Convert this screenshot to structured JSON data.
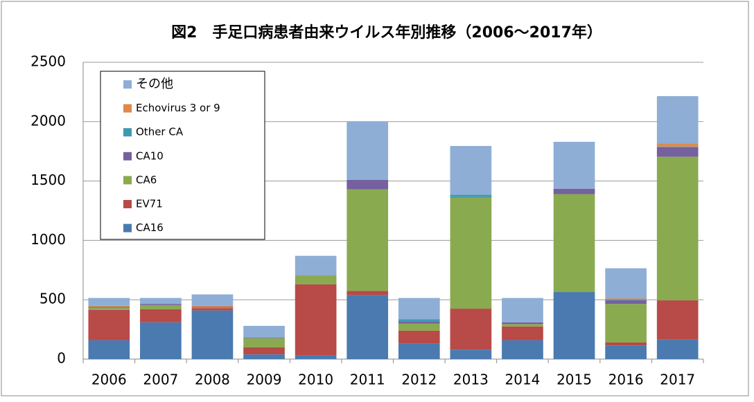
{
  "chart_data": {
    "type": "stacked_bar",
    "title": "図2　手足口病患者由来ウイルス年別推移（2006～2017年）",
    "categories": [
      "2006",
      "2007",
      "2008",
      "2009",
      "2010",
      "2011",
      "2012",
      "2013",
      "2014",
      "2015",
      "2016",
      "2017"
    ],
    "series": [
      {
        "name": "CA16",
        "color": "#4a7ab0",
        "values": [
          160,
          310,
          410,
          40,
          30,
          540,
          130,
          80,
          160,
          565,
          115,
          165
        ]
      },
      {
        "name": "EV71",
        "color": "#b84a48",
        "values": [
          255,
          110,
          20,
          60,
          600,
          35,
          110,
          345,
          115,
          0,
          25,
          330
        ]
      },
      {
        "name": "CA6",
        "color": "#8aaa50",
        "values": [
          15,
          35,
          5,
          75,
          75,
          855,
          60,
          935,
          20,
          825,
          325,
          1210
        ]
      },
      {
        "name": "CA10",
        "color": "#7560a0",
        "values": [
          5,
          10,
          5,
          5,
          0,
          80,
          15,
          5,
          15,
          45,
          30,
          80
        ]
      },
      {
        "name": "Other CA",
        "color": "#3e9ab0",
        "values": [
          5,
          0,
          0,
          0,
          0,
          0,
          20,
          20,
          0,
          0,
          5,
          5
        ]
      },
      {
        "name": "Echovirus 3 or 9",
        "color": "#e0884a",
        "values": [
          10,
          0,
          10,
          0,
          0,
          0,
          0,
          0,
          0,
          0,
          10,
          25
        ]
      },
      {
        "name": "その他",
        "color": "#8eaed6",
        "values": [
          65,
          50,
          95,
          100,
          165,
          490,
          180,
          410,
          205,
          395,
          255,
          400
        ]
      }
    ],
    "ylim": [
      0,
      2500
    ],
    "yticks": [
      0,
      500,
      1000,
      1500,
      2000,
      2500
    ],
    "grid": true,
    "legend": "upper left"
  }
}
